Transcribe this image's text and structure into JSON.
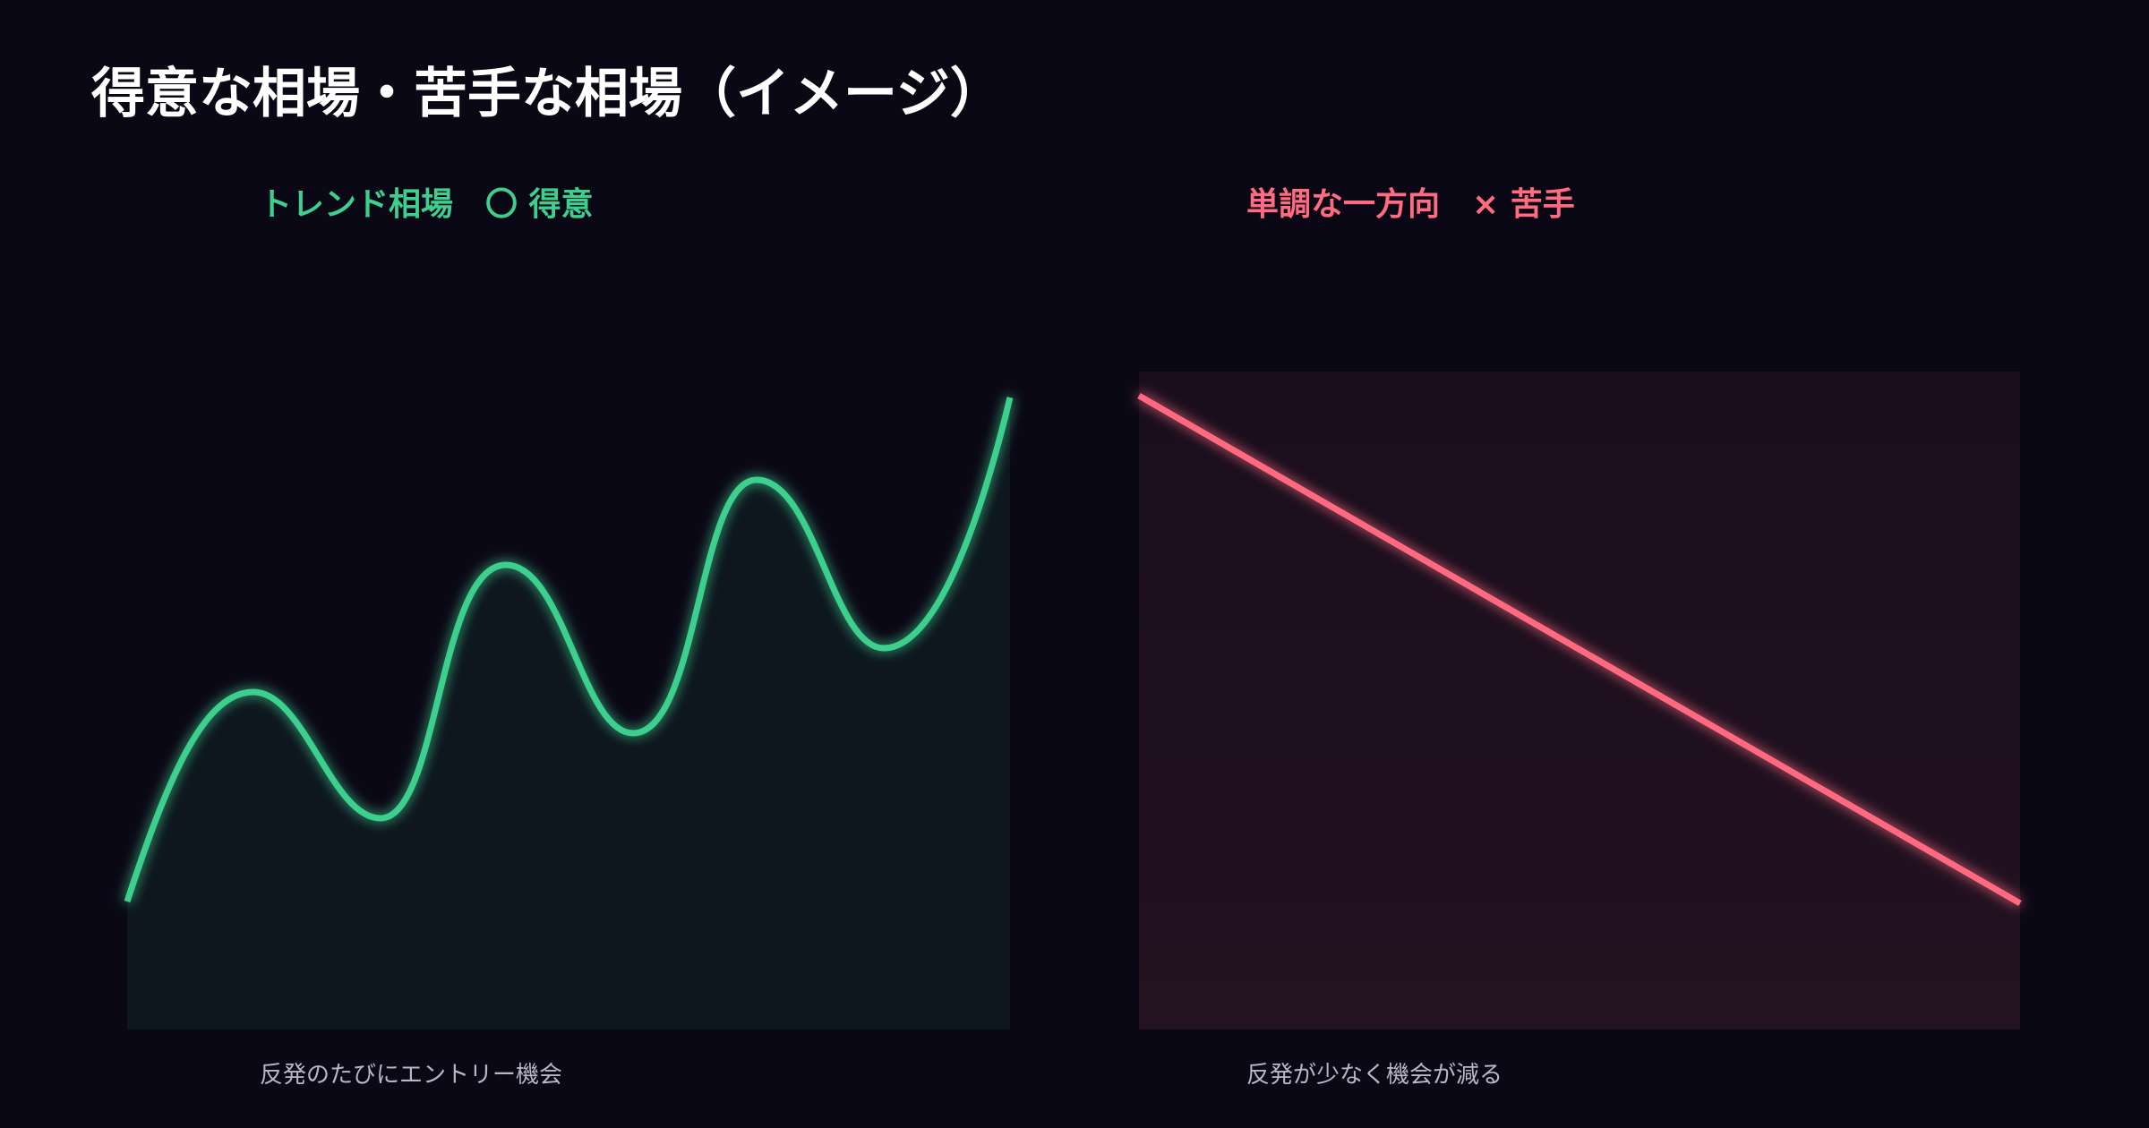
{
  "header": {
    "title": "得意な相場・苦手な相場（イメージ）"
  },
  "panels": [
    {
      "title": "トレンド相場　〇 得意",
      "caption": "反発のたびにエントリー機会"
    },
    {
      "title": "単調な一方向　× 苦手",
      "caption": "反発が少なく機会が減る"
    }
  ]
}
